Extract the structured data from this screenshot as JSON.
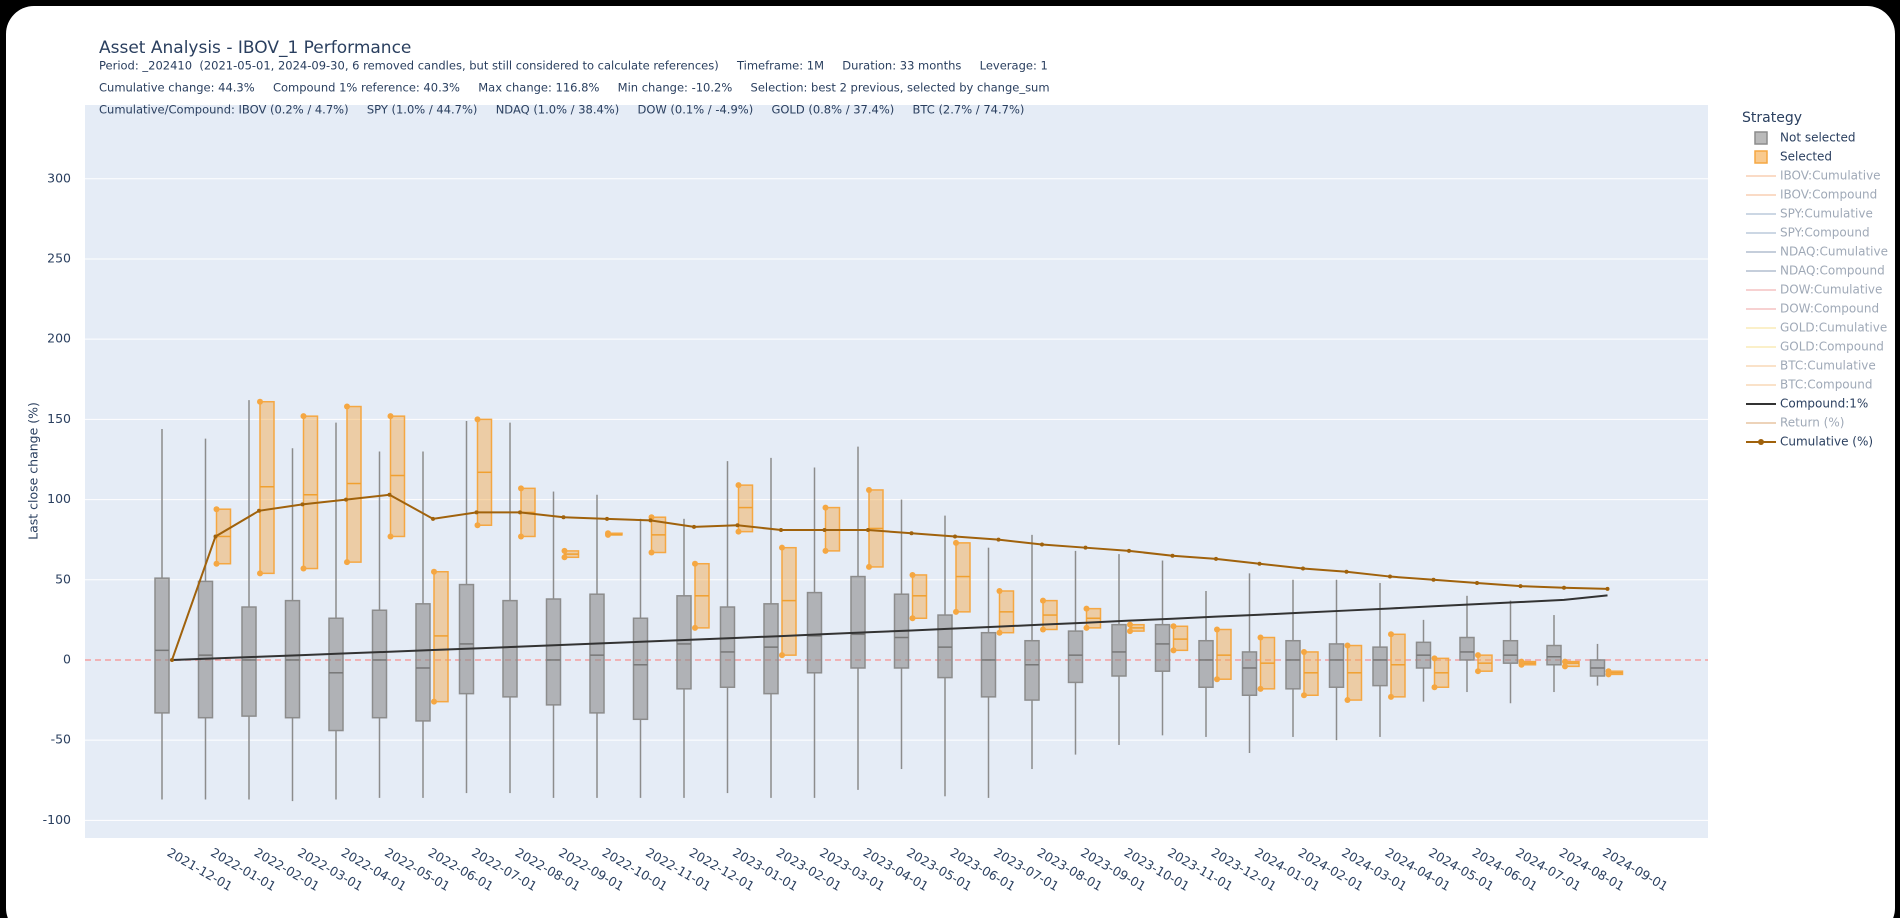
{
  "chart_data": {
    "type": "box",
    "title": "Asset Analysis - IBOV_1 Performance",
    "annotations": [
      "Period: _202410  (2021-05-01, 2024-09-30, 6 removed candles, but still considered to calculate references)     Timeframe: 1M     Duration: 33 months     Leverage: 1",
      "Cumulative change: 44.3%     Compound 1% reference: 40.3%     Max change: 116.8%     Min change: -10.2%     Selection: best 2 previous, selected by change_sum",
      "Cumulative/Compound: IBOV (0.2% / 4.7%)     SPY (1.0% / 44.7%)     NDAQ (1.0% / 38.4%)     DOW (0.1% / -4.9%)     GOLD (0.8% / 37.4%)     BTC (2.7% / 74.7%)"
    ],
    "y_label": "Last close change (%)",
    "legend_title": "Strategy",
    "categories": [
      "2021-12-01",
      "2022-01-01",
      "2022-02-01",
      "2022-03-01",
      "2022-04-01",
      "2022-05-01",
      "2022-06-01",
      "2022-07-01",
      "2022-08-01",
      "2022-09-01",
      "2022-10-01",
      "2022-11-01",
      "2022-12-01",
      "2023-01-01",
      "2023-02-01",
      "2023-03-01",
      "2023-04-01",
      "2023-05-01",
      "2023-06-01",
      "2023-07-01",
      "2023-08-01",
      "2023-09-01",
      "2023-10-01",
      "2023-11-01",
      "2023-12-01",
      "2024-01-01",
      "2024-02-01",
      "2024-03-01",
      "2024-04-01",
      "2024-05-01",
      "2024-06-01",
      "2024-07-01",
      "2024-08-01",
      "2024-09-01"
    ],
    "ylim": [
      -111,
      346
    ],
    "yticks": [
      -100,
      -50,
      0,
      50,
      100,
      150,
      200,
      250,
      300
    ],
    "grid": true,
    "series": [
      {
        "name": "Not selected",
        "kind": "box",
        "color": "#8c8c8c",
        "low": [
          -87,
          -87,
          -87,
          -88,
          -87,
          -86,
          -86,
          -83,
          -83,
          -86,
          -86,
          -86,
          -86,
          -83,
          -86,
          -86,
          -81,
          -68,
          -85,
          -86,
          -68,
          -59,
          -53,
          -47,
          -48,
          -58,
          -48,
          -50,
          -48,
          -26,
          -20,
          -27,
          -20,
          -16
        ],
        "q1": [
          -33,
          -36,
          -35,
          -36,
          -44,
          -36,
          -38,
          -21,
          -23,
          -28,
          -33,
          -37,
          -18,
          -17,
          -21,
          -8,
          -5,
          -5,
          -11,
          -23,
          -25,
          -14,
          -10,
          -7,
          -17,
          -22,
          -18,
          -17,
          -16,
          -5,
          0,
          -2,
          -3,
          -10
        ],
        "median": [
          6,
          3,
          0,
          0,
          -8,
          0,
          -5,
          10,
          8,
          0,
          3,
          -3,
          10,
          5,
          8,
          15,
          16,
          14,
          8,
          0,
          -3,
          3,
          5,
          10,
          0,
          -5,
          0,
          0,
          0,
          3,
          5,
          3,
          2,
          -5
        ],
        "q3": [
          51,
          49,
          33,
          37,
          26,
          31,
          35,
          47,
          37,
          38,
          41,
          26,
          40,
          33,
          35,
          42,
          52,
          41,
          28,
          17,
          12,
          18,
          22,
          22,
          12,
          5,
          12,
          10,
          8,
          11,
          14,
          12,
          9,
          0
        ],
        "high": [
          144,
          138,
          162,
          132,
          148,
          130,
          130,
          149,
          148,
          105,
          103,
          88,
          88,
          124,
          126,
          120,
          133,
          100,
          90,
          70,
          78,
          68,
          66,
          62,
          43,
          54,
          50,
          50,
          48,
          25,
          40,
          37,
          28,
          10
        ]
      },
      {
        "name": "Selected",
        "kind": "box",
        "color": "#f5a742",
        "q1": [
          null,
          60,
          54,
          57,
          61,
          77,
          -26,
          84,
          77,
          64,
          78,
          67,
          20,
          80,
          3,
          68,
          58,
          26,
          30,
          17,
          19,
          20,
          18,
          6,
          -12,
          -18,
          -22,
          -25,
          -23,
          -17,
          -7,
          -3,
          -4,
          -9
        ],
        "median": [
          null,
          77,
          108,
          103,
          110,
          115,
          15,
          117,
          92,
          66,
          78,
          78,
          40,
          95,
          37,
          81,
          82,
          40,
          52,
          30,
          28,
          26,
          20,
          13,
          3,
          -2,
          -8,
          -8,
          -3,
          -8,
          -2,
          -2,
          -2,
          -8
        ],
        "q3": [
          null,
          94,
          161,
          152,
          158,
          152,
          55,
          150,
          107,
          68,
          79,
          89,
          60,
          109,
          70,
          95,
          106,
          53,
          73,
          43,
          37,
          32,
          22,
          21,
          19,
          14,
          5,
          9,
          16,
          1,
          3,
          -1,
          -1,
          -7
        ]
      },
      {
        "name": "IBOV:Cumulative",
        "kind": "line",
        "color": "#f4b183",
        "visible": false
      },
      {
        "name": "IBOV:Compound",
        "kind": "line",
        "color": "#f4b183",
        "visible": false
      },
      {
        "name": "SPY:Cumulative",
        "kind": "line",
        "color": "#8fa7c4",
        "visible": false
      },
      {
        "name": "SPY:Compound",
        "kind": "line",
        "color": "#8fa7c4",
        "visible": false
      },
      {
        "name": "NDAQ:Cumulative",
        "kind": "line",
        "color": "#7f93b0",
        "visible": false
      },
      {
        "name": "NDAQ:Compound",
        "kind": "line",
        "color": "#7f93b0",
        "visible": false
      },
      {
        "name": "DOW:Cumulative",
        "kind": "line",
        "color": "#ee9a9a",
        "visible": false
      },
      {
        "name": "DOW:Compound",
        "kind": "line",
        "color": "#ee9a9a",
        "visible": false
      },
      {
        "name": "GOLD:Cumulative",
        "kind": "line",
        "color": "#f7e08a",
        "visible": false
      },
      {
        "name": "GOLD:Compound",
        "kind": "line",
        "color": "#f7e08a",
        "visible": false
      },
      {
        "name": "BTC:Cumulative",
        "kind": "line",
        "color": "#f5c08a",
        "visible": false
      },
      {
        "name": "BTC:Compound",
        "kind": "line",
        "color": "#f5c08a",
        "visible": false
      },
      {
        "name": "Compound:1%",
        "kind": "line",
        "color": "#333333",
        "visible": true,
        "values": [
          0,
          1.0,
          2.0,
          3.0,
          4.1,
          5.1,
          6.2,
          7.2,
          8.3,
          9.4,
          10.5,
          11.6,
          12.7,
          13.8,
          14.9,
          16.1,
          17.3,
          18.4,
          19.6,
          20.8,
          22.0,
          23.2,
          24.5,
          25.7,
          27.0,
          28.2,
          29.5,
          30.8,
          32.1,
          33.5,
          34.8,
          36.1,
          37.5,
          40.3
        ]
      },
      {
        "name": "Return (%)",
        "kind": "line",
        "color": "#d9a066",
        "visible": false
      },
      {
        "name": "Cumulative (%)",
        "kind": "line",
        "color": "#a0620c",
        "visible": true,
        "markers": true,
        "values": [
          0,
          77,
          93,
          97,
          100,
          103,
          88,
          92,
          92,
          89,
          88,
          87,
          83,
          84,
          81,
          81,
          81,
          79,
          77,
          75,
          72,
          70,
          68,
          65,
          63,
          60,
          57,
          55,
          52,
          50,
          48,
          46,
          45,
          44.3
        ]
      }
    ],
    "zero_line_color": "#f4a0a0"
  }
}
